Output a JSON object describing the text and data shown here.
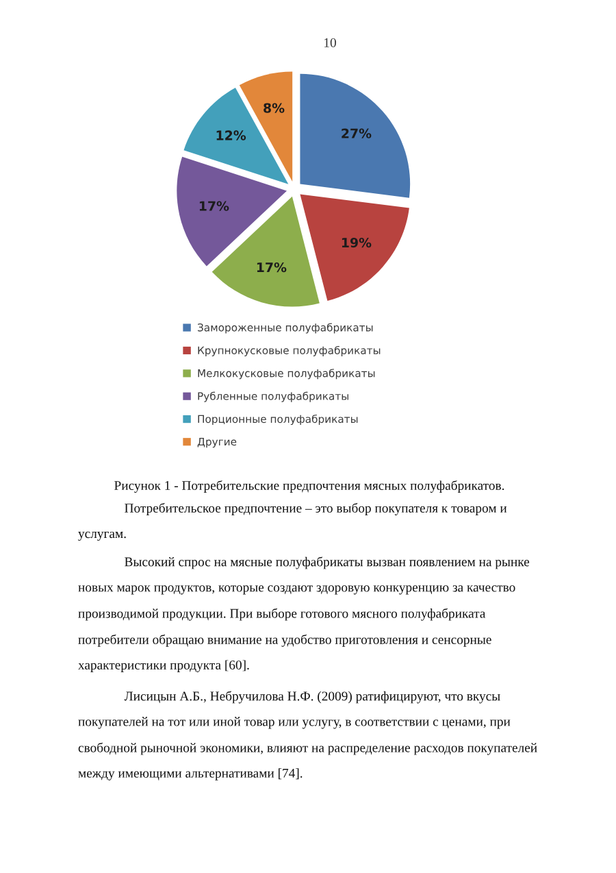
{
  "chart_data": {
    "type": "pie",
    "categories": [
      "Замороженные полуфабрикаты",
      "Крупнокусковые полуфабрикаты",
      "Мелкокусковые полуфабрикаты",
      "Рубленные полуфабрикаты",
      "Порционные полуфабрикаты",
      "Другие"
    ],
    "values": [
      27,
      19,
      17,
      17,
      12,
      8
    ],
    "value_labels": [
      "27%",
      "19%",
      "17%",
      "17%",
      "12%",
      "8%"
    ],
    "colors": [
      "#4a78b0",
      "#b8433f",
      "#8dae4c",
      "#74589a",
      "#43a0bb",
      "#e2873a"
    ],
    "legend": "bottom",
    "annotations": [
      "10",
      "Рисунок 1 - Потребительские предпочтения мясных полуфабрикатов.",
      "Потребительское предпочтение – это выбор покупателя к товаром и\nуслугам.",
      "Высокий спрос на мясные полуфабрикаты вызван появлением на рынке\nновых марок продуктов, которые создают здоровую конкуренцию за качество\nпроизводимой продукции. При выборе готового мясного полуфабриката\nпотребители обращаю внимание на удобство приготовления и сенсорные\nхарактеристики продукта [60].",
      "Лисицын А.Б., Небручилова Н.Ф. (2009) ратифицируют, что вкусы\nпокупателей на тот или иной товар или услугу, в соответствии с ценами, при\nсвободной рыночной экономики, влияют на распределение расходов покупателей\nмежду имеющими альтернативами [74]."
    ]
  }
}
